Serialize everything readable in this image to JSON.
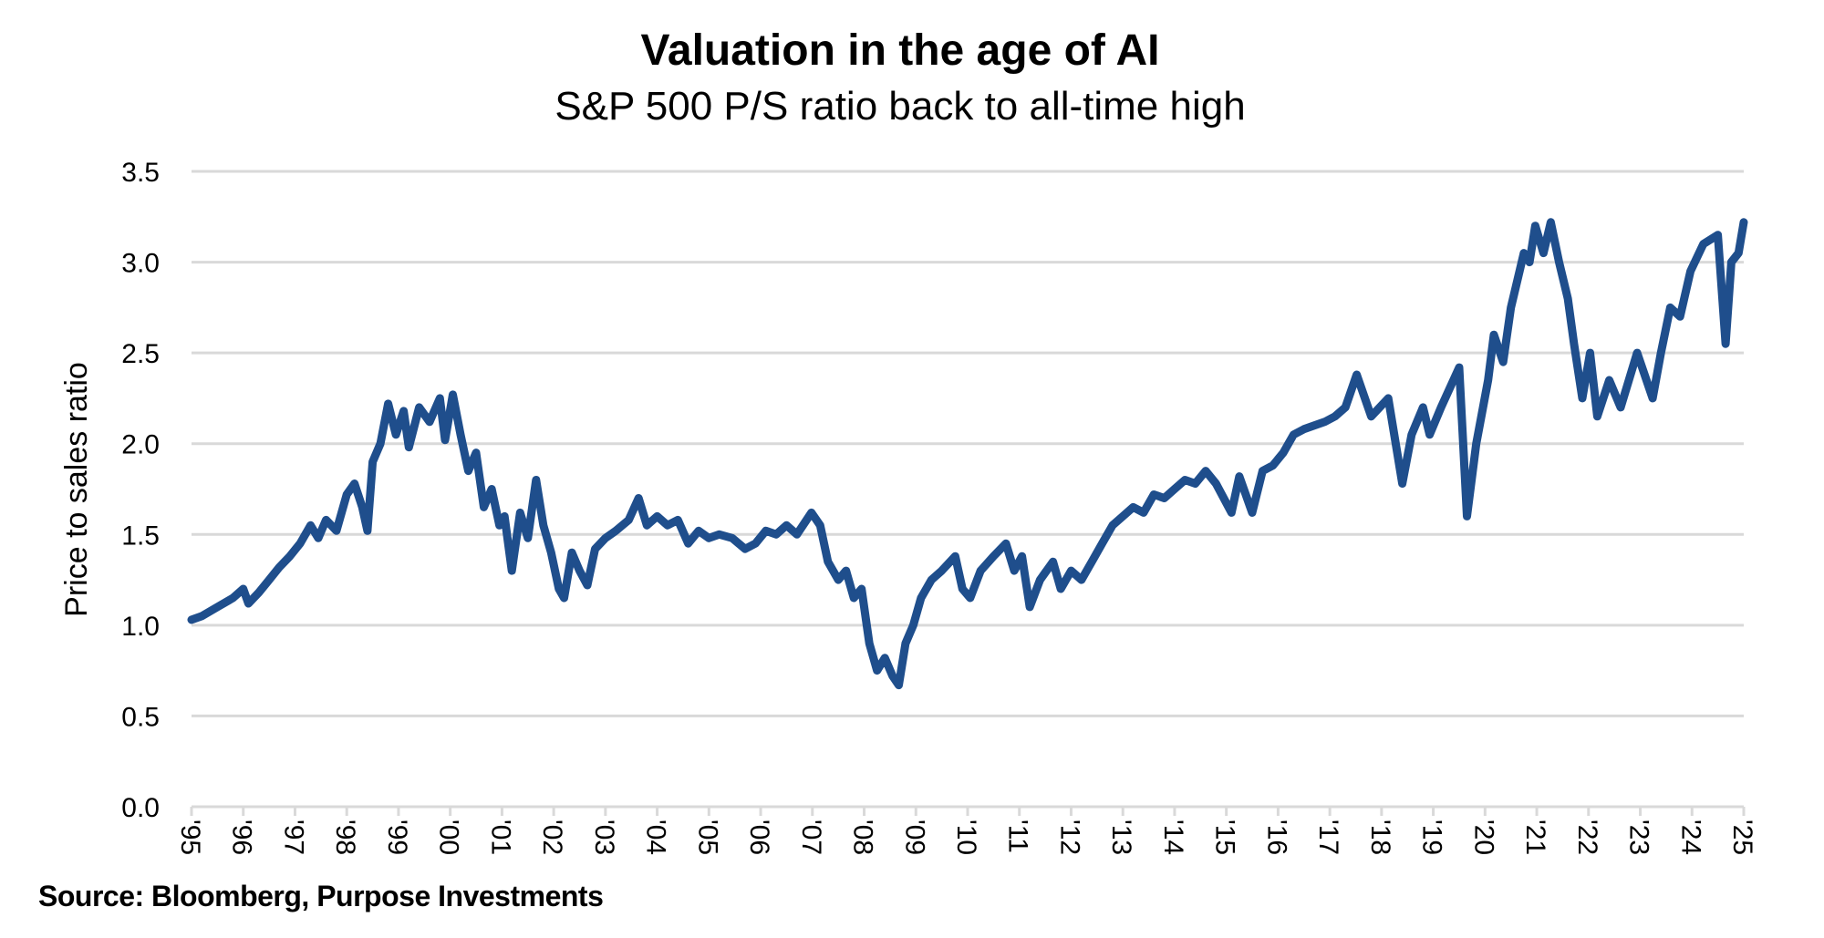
{
  "chart_data": {
    "type": "line",
    "title": "Valuation in the age of AI",
    "subtitle": "S&P 500 P/S ratio back to all-time high",
    "xlabel": "",
    "ylabel": "Price to sales ratio",
    "source": "Source: Bloomberg, Purpose Investments",
    "xlim": [
      1995,
      2025
    ],
    "ylim": [
      0,
      3.5
    ],
    "grid": true,
    "line_color": "#1f4e8c",
    "grid_color": "#d9d9d9",
    "y_ticks": [
      "0.0",
      "0.5",
      "1.0",
      "1.5",
      "2.0",
      "2.5",
      "3.0",
      "3.5"
    ],
    "x_ticks": [
      "'95",
      "'96",
      "'97",
      "'98",
      "'99",
      "'00",
      "'01",
      "'02",
      "'03",
      "'04",
      "'05",
      "'06",
      "'07",
      "'08",
      "'09",
      "'10",
      "'11",
      "'12",
      "'13",
      "'14",
      "'15",
      "'16",
      "'17",
      "'18",
      "'19",
      "'20",
      "'21",
      "'22",
      "'23",
      "'24",
      "'25"
    ],
    "series": [
      {
        "x": [
          1995.0,
          1995.2,
          1995.5,
          1995.8,
          1996.0,
          1996.1,
          1996.3,
          1996.5,
          1996.7,
          1996.9,
          1997.1,
          1997.3,
          1997.45,
          1997.6,
          1997.8,
          1998.0,
          1998.15,
          1998.3,
          1998.4,
          1998.5,
          1998.65,
          1998.8,
          1998.95,
          1999.1,
          1999.2,
          1999.4,
          1999.6,
          1999.8,
          1999.9,
          2000.05,
          2000.2,
          2000.35,
          2000.5,
          2000.65,
          2000.8,
          2000.95,
          2001.05,
          2001.19,
          2001.35,
          2001.5,
          2001.66,
          2001.8,
          2001.95,
          2002.1,
          2002.2,
          2002.35,
          2002.5,
          2002.65,
          2002.8,
          2003.0,
          2003.2,
          2003.45,
          2003.64,
          2003.8,
          2004.0,
          2004.2,
          2004.4,
          2004.6,
          2004.8,
          2005.0,
          2005.2,
          2005.45,
          2005.7,
          2005.9,
          2006.1,
          2006.3,
          2006.5,
          2006.7,
          2006.98,
          2007.15,
          2007.3,
          2007.5,
          2007.65,
          2007.8,
          2007.95,
          2008.1,
          2008.25,
          2008.4,
          2008.55,
          2008.67,
          2008.8,
          2008.95,
          2009.1,
          2009.3,
          2009.5,
          2009.76,
          2009.9,
          2010.05,
          2010.25,
          2010.5,
          2010.74,
          2010.9,
          2011.05,
          2011.2,
          2011.4,
          2011.65,
          2011.8,
          2012.0,
          2012.2,
          2012.4,
          2012.6,
          2012.8,
          2013.0,
          2013.2,
          2013.4,
          2013.6,
          2013.8,
          2014.0,
          2014.2,
          2014.4,
          2014.6,
          2014.8,
          2015.1,
          2015.25,
          2015.5,
          2015.7,
          2015.9,
          2016.1,
          2016.3,
          2016.5,
          2016.7,
          2016.9,
          2017.1,
          2017.3,
          2017.52,
          2017.8,
          2018.13,
          2018.4,
          2018.58,
          2018.8,
          2018.93,
          2019.15,
          2019.5,
          2019.65,
          2019.83,
          2020.06,
          2020.17,
          2020.35,
          2020.5,
          2020.75,
          2020.86,
          2020.97,
          2021.13,
          2021.27,
          2021.43,
          2021.6,
          2021.72,
          2021.88,
          2022.03,
          2022.17,
          2022.4,
          2022.62,
          2022.94,
          2023.24,
          2023.4,
          2023.58,
          2023.77,
          2023.97,
          2024.22,
          2024.5,
          2024.65,
          2024.76,
          2024.9,
          2025.0
        ],
        "y": [
          1.03,
          1.05,
          1.1,
          1.15,
          1.2,
          1.12,
          1.18,
          1.25,
          1.32,
          1.38,
          1.45,
          1.55,
          1.48,
          1.58,
          1.52,
          1.72,
          1.78,
          1.65,
          1.52,
          1.9,
          2.0,
          2.22,
          2.05,
          2.18,
          1.98,
          2.2,
          2.12,
          2.25,
          2.02,
          2.27,
          2.05,
          1.85,
          1.95,
          1.65,
          1.75,
          1.55,
          1.6,
          1.3,
          1.62,
          1.48,
          1.8,
          1.55,
          1.4,
          1.2,
          1.15,
          1.4,
          1.3,
          1.22,
          1.42,
          1.48,
          1.52,
          1.58,
          1.7,
          1.55,
          1.6,
          1.55,
          1.58,
          1.45,
          1.52,
          1.48,
          1.5,
          1.48,
          1.42,
          1.45,
          1.52,
          1.5,
          1.55,
          1.5,
          1.62,
          1.55,
          1.35,
          1.25,
          1.3,
          1.15,
          1.2,
          0.9,
          0.75,
          0.82,
          0.72,
          0.67,
          0.9,
          1.0,
          1.15,
          1.25,
          1.3,
          1.38,
          1.2,
          1.15,
          1.3,
          1.38,
          1.45,
          1.3,
          1.38,
          1.1,
          1.25,
          1.35,
          1.2,
          1.3,
          1.25,
          1.35,
          1.45,
          1.55,
          1.6,
          1.65,
          1.62,
          1.72,
          1.7,
          1.75,
          1.8,
          1.78,
          1.85,
          1.78,
          1.62,
          1.82,
          1.62,
          1.85,
          1.88,
          1.95,
          2.05,
          2.08,
          2.1,
          2.12,
          2.15,
          2.2,
          2.38,
          2.15,
          2.25,
          1.78,
          2.05,
          2.2,
          2.05,
          2.2,
          2.42,
          1.6,
          2.0,
          2.35,
          2.6,
          2.45,
          2.75,
          3.05,
          3.0,
          3.2,
          3.05,
          3.22,
          3.0,
          2.8,
          2.55,
          2.25,
          2.5,
          2.15,
          2.35,
          2.2,
          2.5,
          2.25,
          2.5,
          2.75,
          2.7,
          2.95,
          3.1,
          3.15,
          2.55,
          3.0,
          3.05,
          3.22
        ]
      }
    ]
  }
}
